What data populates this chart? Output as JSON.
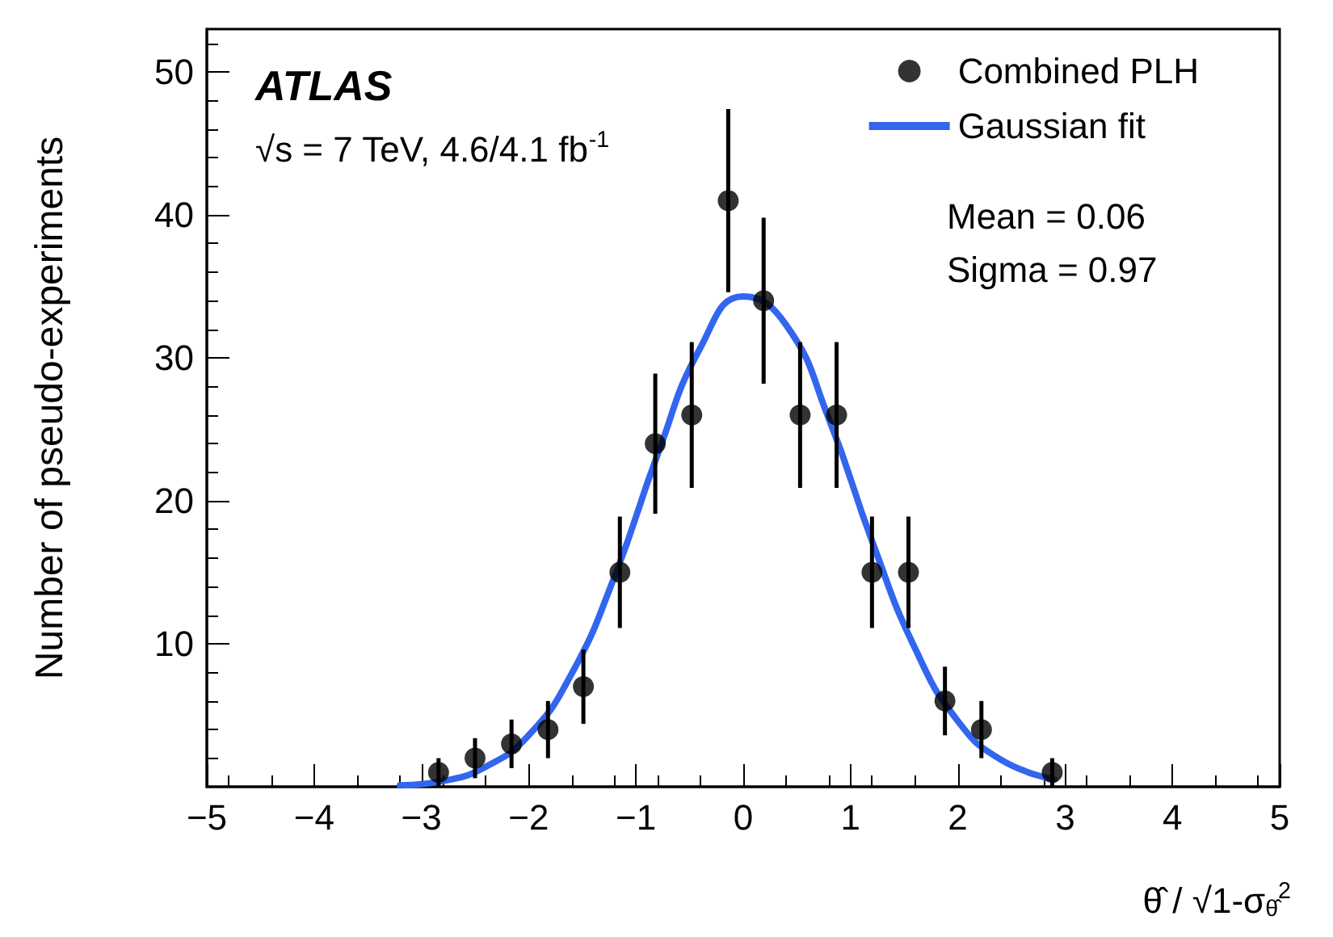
{
  "chart_data": {
    "type": "scatter",
    "xlabel": "θ̂ / √1-σ$_{θ̂}$$^{2}$",
    "ylabel": "Number of pseudo-experiments",
    "annotations": [
      "ATLAS",
      "√s = 7 TeV, 4.6/4.1 fb$^{-1}$",
      "Mean = 0.06",
      "Sigma = 0.97"
    ],
    "xlim": [
      -5,
      5
    ],
    "xticks": [
      -5,
      -4,
      -3,
      -2,
      -1,
      0,
      1,
      2,
      3,
      4,
      5
    ],
    "ylim": [
      0,
      53
    ],
    "yticks": [
      10,
      20,
      30,
      40,
      50
    ],
    "legend": "top right",
    "grid": false,
    "marker": "circle",
    "series": [
      {
        "name": "Combined PLH",
        "color": "#000000",
        "x": [
          -2.84,
          -2.5,
          -2.16,
          -1.82,
          -1.49,
          -1.15,
          -0.82,
          -0.48,
          -0.14,
          0.19,
          0.53,
          0.87,
          1.2,
          1.54,
          1.88,
          2.22,
          2.88
        ],
        "values": [
          1,
          2,
          3,
          4,
          7,
          15,
          24,
          26,
          41,
          34,
          26,
          26,
          15,
          15,
          6,
          4,
          1
        ],
        "errors": [
          1,
          1.4,
          1.7,
          2,
          2.6,
          3.9,
          4.9,
          5.1,
          6.4,
          5.8,
          5.1,
          5.1,
          3.9,
          3.9,
          2.4,
          2,
          1
        ]
      },
      {
        "name": "Gaussian fit",
        "type": "line",
        "color": "#3366ee",
        "marker": "none",
        "x": [
          -3.2,
          -2.8,
          -2.4,
          -2.0,
          -1.6,
          -1.2,
          -0.8,
          -0.4,
          0.0,
          0.4,
          0.8,
          1.2,
          1.6,
          2.0,
          2.4,
          2.9
        ],
        "values": [
          0.1,
          0.4,
          1.4,
          3.6,
          7.9,
          14.7,
          23.2,
          30.7,
          34.3,
          32.3,
          25.7,
          17.2,
          9.7,
          4.6,
          1.9,
          0.5
        ]
      }
    ]
  }
}
